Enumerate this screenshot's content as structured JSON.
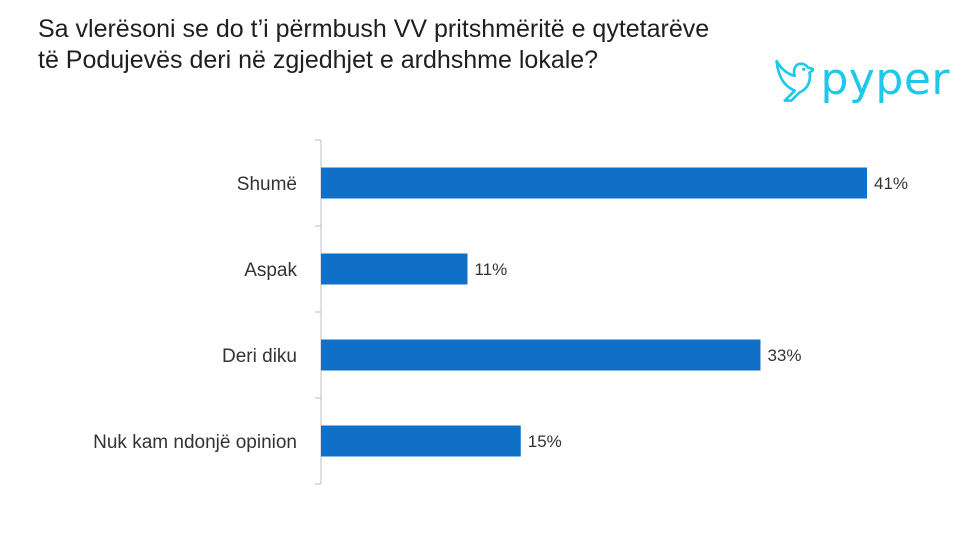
{
  "chart_data": {
    "type": "bar",
    "orientation": "horizontal",
    "title": "Sa vlerësoni se do t’i përmbush VV pritshmëritë e qytetarëve të Podujevës deri në zgjedhjet e ardhshme lokale?",
    "categories": [
      "Shumë",
      "Aspak",
      "Deri diku",
      "Nuk kam ndonjë opinion"
    ],
    "values": [
      41,
      11,
      33,
      15
    ],
    "value_labels": [
      "41%",
      "11%",
      "33%",
      "15%"
    ],
    "xlim": [
      0,
      41
    ],
    "bar_color": "#1070c8",
    "grid": false
  },
  "logo": {
    "text": "pyper",
    "icon": "bird-icon",
    "color": "#1ec8e8"
  }
}
